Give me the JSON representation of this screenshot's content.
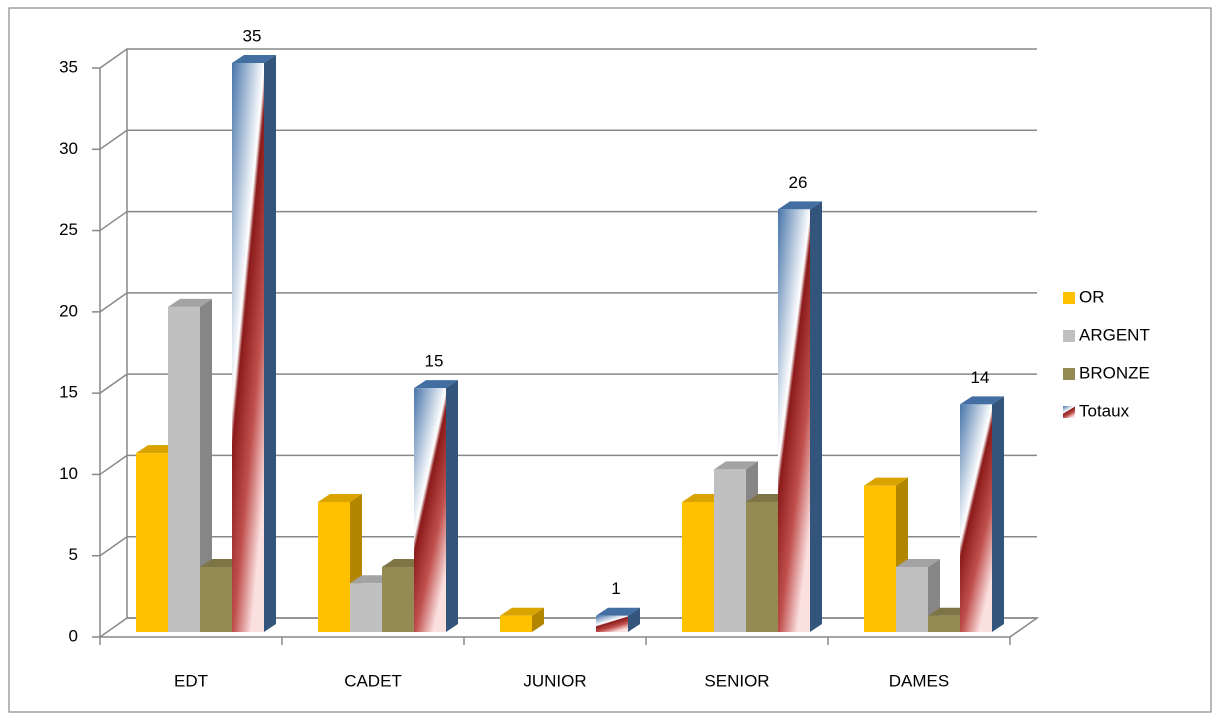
{
  "chart_data": {
    "type": "bar3d",
    "categories": [
      "EDT",
      "CADET",
      "JUNIOR",
      "SENIOR",
      "DAMES"
    ],
    "series": [
      {
        "name": "OR",
        "color": "#ffc000",
        "values": [
          11,
          8,
          1,
          8,
          9
        ]
      },
      {
        "name": "ARGENT",
        "color": "#c0c0c0",
        "values": [
          20,
          3,
          0,
          10,
          4
        ]
      },
      {
        "name": "BRONZE",
        "color": "#948a54",
        "values": [
          4,
          4,
          0,
          8,
          1
        ]
      },
      {
        "name": "Totaux",
        "color": "#4f81bd",
        "values": [
          35,
          15,
          1,
          26,
          14
        ],
        "value_labels": [
          "35",
          "15",
          "1",
          "26",
          "14"
        ]
      }
    ],
    "ylim": [
      0,
      35
    ],
    "yticks": [
      0,
      5,
      10,
      15,
      20,
      25,
      30,
      35
    ],
    "grid": true,
    "legend": "right"
  }
}
